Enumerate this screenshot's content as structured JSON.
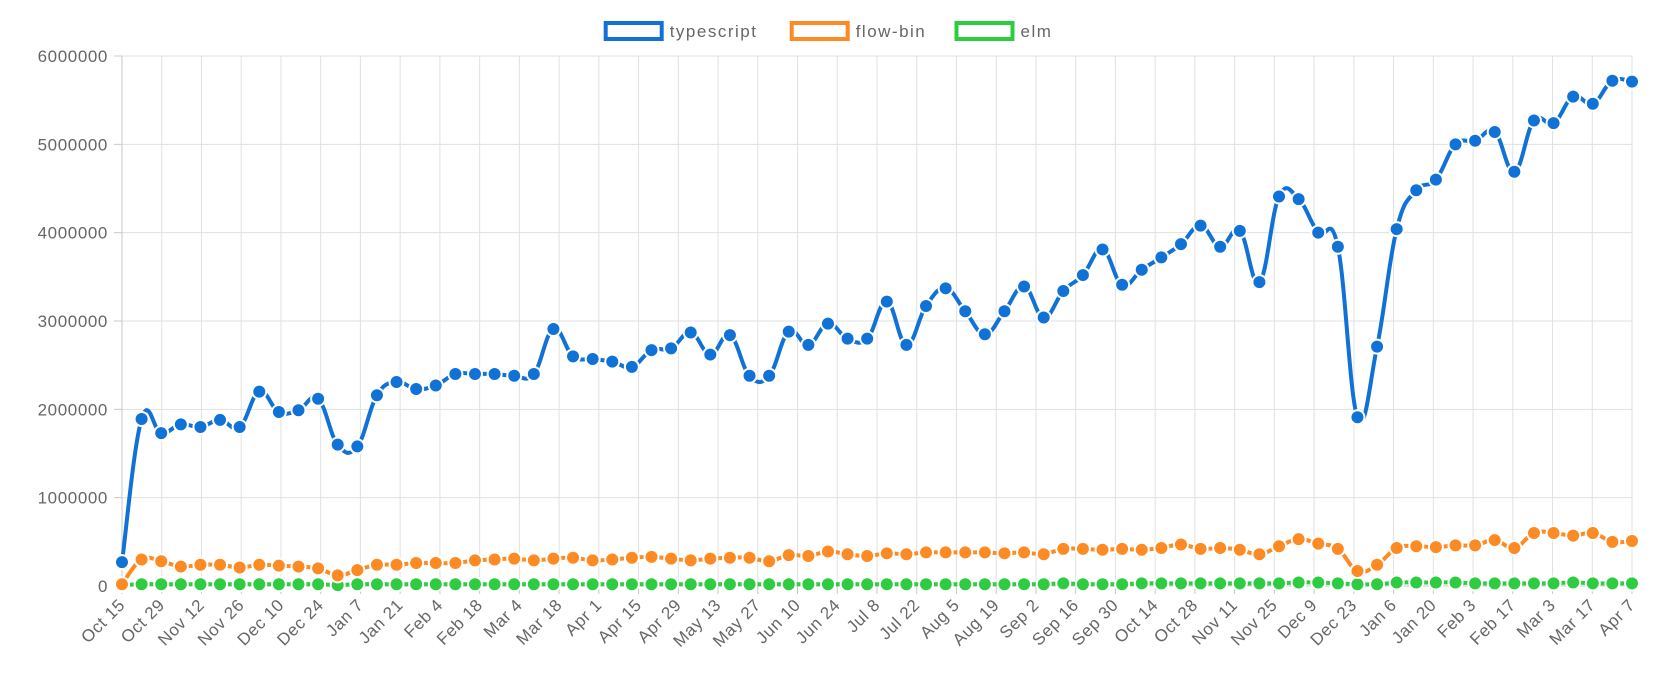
{
  "chart_data": {
    "type": "line",
    "title": "",
    "xlabel": "",
    "ylabel": "",
    "ylim": [
      0,
      6000000
    ],
    "y_ticks": [
      "0",
      "1000000",
      "2000000",
      "3000000",
      "4000000",
      "5000000",
      "6000000"
    ],
    "x_tick_labels": [
      "Oct 15",
      "Oct 29",
      "Nov 12",
      "Nov 26",
      "Dec 10",
      "Dec 24",
      "Jan 7",
      "Jan 21",
      "Feb 4",
      "Feb 18",
      "Mar 4",
      "Mar 18",
      "Apr 1",
      "Apr 15",
      "Apr 29",
      "May 13",
      "May 27",
      "Jun 10",
      "Jun 24",
      "Jul 8",
      "Jul 22",
      "Aug 5",
      "Aug 19",
      "Sep 2",
      "Sep 16",
      "Sep 30",
      "Oct 14",
      "Oct 28",
      "Nov 11",
      "Nov 25",
      "Dec 9",
      "Dec 23",
      "Jan 6",
      "Jan 20",
      "Feb 3",
      "Feb 17",
      "Mar 3",
      "Mar 17",
      "Apr 7"
    ],
    "grid": true,
    "legend_position": "top-center",
    "series": [
      {
        "name": "typescript",
        "color": "#1072d6",
        "values": [
          270000,
          1890000,
          1730000,
          1830000,
          1800000,
          1880000,
          1800000,
          2200000,
          1970000,
          1990000,
          2120000,
          1600000,
          1580000,
          2160000,
          2310000,
          2230000,
          2270000,
          2400000,
          2400000,
          2400000,
          2380000,
          2400000,
          2910000,
          2600000,
          2570000,
          2540000,
          2480000,
          2670000,
          2690000,
          2870000,
          2620000,
          2840000,
          2380000,
          2380000,
          2880000,
          2730000,
          2970000,
          2800000,
          2800000,
          3220000,
          2730000,
          3170000,
          3370000,
          3110000,
          2850000,
          3110000,
          3390000,
          3040000,
          3340000,
          3520000,
          3810000,
          3410000,
          3580000,
          3720000,
          3870000,
          4080000,
          3840000,
          4020000,
          3440000,
          4410000,
          4380000,
          4000000,
          3840000,
          1910000,
          2710000,
          4040000,
          4480000,
          4600000,
          5000000,
          5040000,
          5140000,
          4690000,
          5270000,
          5240000,
          5540000,
          5460000,
          5720000,
          5710000
        ]
      },
      {
        "name": "flow-bin",
        "color": "#fd8a22",
        "values": [
          20000,
          300000,
          280000,
          220000,
          240000,
          240000,
          210000,
          240000,
          230000,
          220000,
          200000,
          120000,
          180000,
          240000,
          240000,
          260000,
          260000,
          260000,
          290000,
          300000,
          310000,
          290000,
          310000,
          320000,
          290000,
          300000,
          320000,
          330000,
          310000,
          290000,
          310000,
          320000,
          320000,
          280000,
          350000,
          340000,
          390000,
          360000,
          340000,
          370000,
          360000,
          380000,
          380000,
          380000,
          380000,
          370000,
          380000,
          360000,
          420000,
          420000,
          410000,
          420000,
          410000,
          430000,
          470000,
          420000,
          430000,
          410000,
          360000,
          450000,
          530000,
          480000,
          420000,
          170000,
          240000,
          430000,
          450000,
          440000,
          460000,
          460000,
          520000,
          430000,
          600000,
          600000,
          570000,
          600000,
          500000,
          510000
        ]
      },
      {
        "name": "elm",
        "color": "#2ecc40",
        "values": [
          10000,
          20000,
          20000,
          20000,
          20000,
          20000,
          20000,
          20000,
          20000,
          20000,
          20000,
          10000,
          20000,
          20000,
          20000,
          20000,
          20000,
          20000,
          20000,
          20000,
          20000,
          20000,
          20000,
          20000,
          20000,
          20000,
          20000,
          20000,
          20000,
          20000,
          20000,
          20000,
          20000,
          20000,
          20000,
          20000,
          20000,
          20000,
          20000,
          20000,
          20000,
          20000,
          20000,
          20000,
          20000,
          20000,
          20000,
          20000,
          30000,
          20000,
          20000,
          20000,
          30000,
          30000,
          30000,
          30000,
          30000,
          30000,
          30000,
          30000,
          40000,
          40000,
          30000,
          20000,
          20000,
          40000,
          40000,
          40000,
          40000,
          30000,
          30000,
          30000,
          30000,
          30000,
          40000,
          30000,
          30000,
          30000
        ]
      }
    ]
  }
}
